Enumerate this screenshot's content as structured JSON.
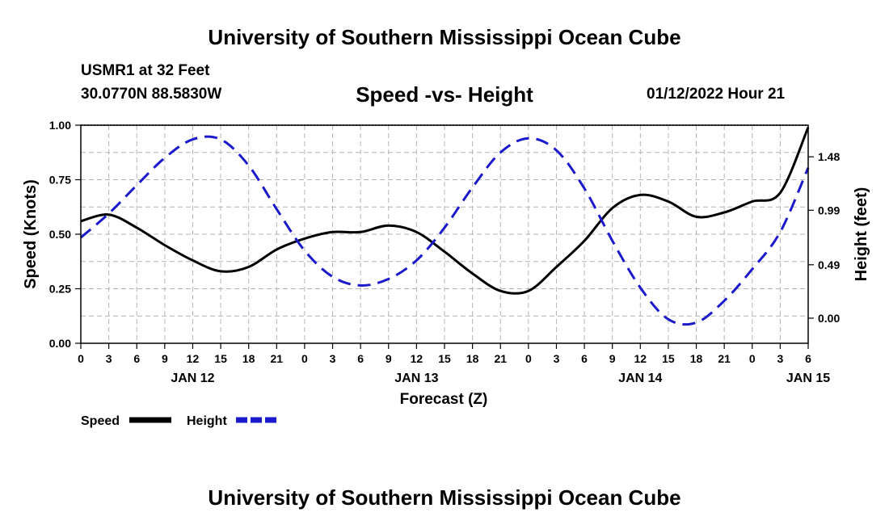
{
  "header": {
    "title": "University of Southern Mississippi Ocean Cube",
    "station": "USMR1 at 32 Feet",
    "coordinates": "30.0770N  88.5830W",
    "subtitle": "Speed -vs- Height",
    "datetime": "01/12/2022 Hour 21"
  },
  "footer": {
    "title": "University of Southern Mississippi Ocean Cube"
  },
  "chart_data": {
    "type": "line",
    "xlabel": "Forecast (Z)",
    "ylabel": "Speed (Knots)",
    "y2label": "Height (feet)",
    "x_hours_range": [
      0,
      78
    ],
    "x_tick_labels": [
      "0",
      "3",
      "6",
      "9",
      "12",
      "15",
      "18",
      "21",
      "0",
      "3",
      "6",
      "9",
      "12",
      "15",
      "18",
      "21",
      "0",
      "3",
      "6",
      "9",
      "12",
      "15",
      "18",
      "21",
      "0",
      "3",
      "6"
    ],
    "date_labels": [
      {
        "hour": 12,
        "label": "JAN 12"
      },
      {
        "hour": 36,
        "label": "JAN 13"
      },
      {
        "hour": 60,
        "label": "JAN 14"
      },
      {
        "hour": 78,
        "label": "JAN 15"
      }
    ],
    "ylim": [
      0,
      1.0
    ],
    "y_ticks": [
      0.0,
      0.25,
      0.5,
      0.75,
      1.0
    ],
    "y_tick_labels": [
      "0.00",
      "0.25",
      "0.50",
      "0.75",
      "1.00"
    ],
    "y2lim": [
      -0.23,
      1.77
    ],
    "y2_ticks": [
      0.0,
      0.49,
      0.99,
      1.48
    ],
    "y2_tick_labels": [
      "0.00",
      "0.49",
      "0.99",
      "1.48"
    ],
    "grid": true,
    "legend": [
      {
        "name": "Speed",
        "color": "#000000",
        "style": "solid"
      },
      {
        "name": "Height",
        "color": "#1a1acc",
        "style": "dashed"
      }
    ],
    "series": [
      {
        "name": "Speed",
        "axis": "left",
        "color": "#000000",
        "style": "solid",
        "x": [
          0,
          3,
          6,
          9,
          12,
          15,
          18,
          21,
          24,
          27,
          30,
          33,
          36,
          39,
          42,
          45,
          48,
          51,
          54,
          57,
          60,
          63,
          66,
          69,
          72,
          75,
          78
        ],
        "y": [
          0.56,
          0.59,
          0.53,
          0.45,
          0.38,
          0.33,
          0.35,
          0.43,
          0.48,
          0.51,
          0.51,
          0.54,
          0.51,
          0.42,
          0.32,
          0.24,
          0.24,
          0.35,
          0.47,
          0.62,
          0.68,
          0.65,
          0.58,
          0.6,
          0.65,
          0.69,
          0.99
        ]
      },
      {
        "name": "Height",
        "axis": "right",
        "color": "#1a1acc",
        "style": "dashed",
        "x": [
          0,
          3,
          6,
          9,
          12,
          15,
          18,
          21,
          24,
          27,
          30,
          33,
          36,
          39,
          42,
          45,
          48,
          51,
          54,
          57,
          60,
          63,
          66,
          69,
          72,
          75,
          78
        ],
        "y": [
          0.74,
          0.96,
          1.22,
          1.47,
          1.64,
          1.64,
          1.4,
          1.0,
          0.62,
          0.38,
          0.3,
          0.36,
          0.53,
          0.83,
          1.2,
          1.52,
          1.65,
          1.54,
          1.19,
          0.71,
          0.28,
          -0.01,
          -0.04,
          0.16,
          0.45,
          0.79,
          1.38
        ]
      }
    ]
  }
}
